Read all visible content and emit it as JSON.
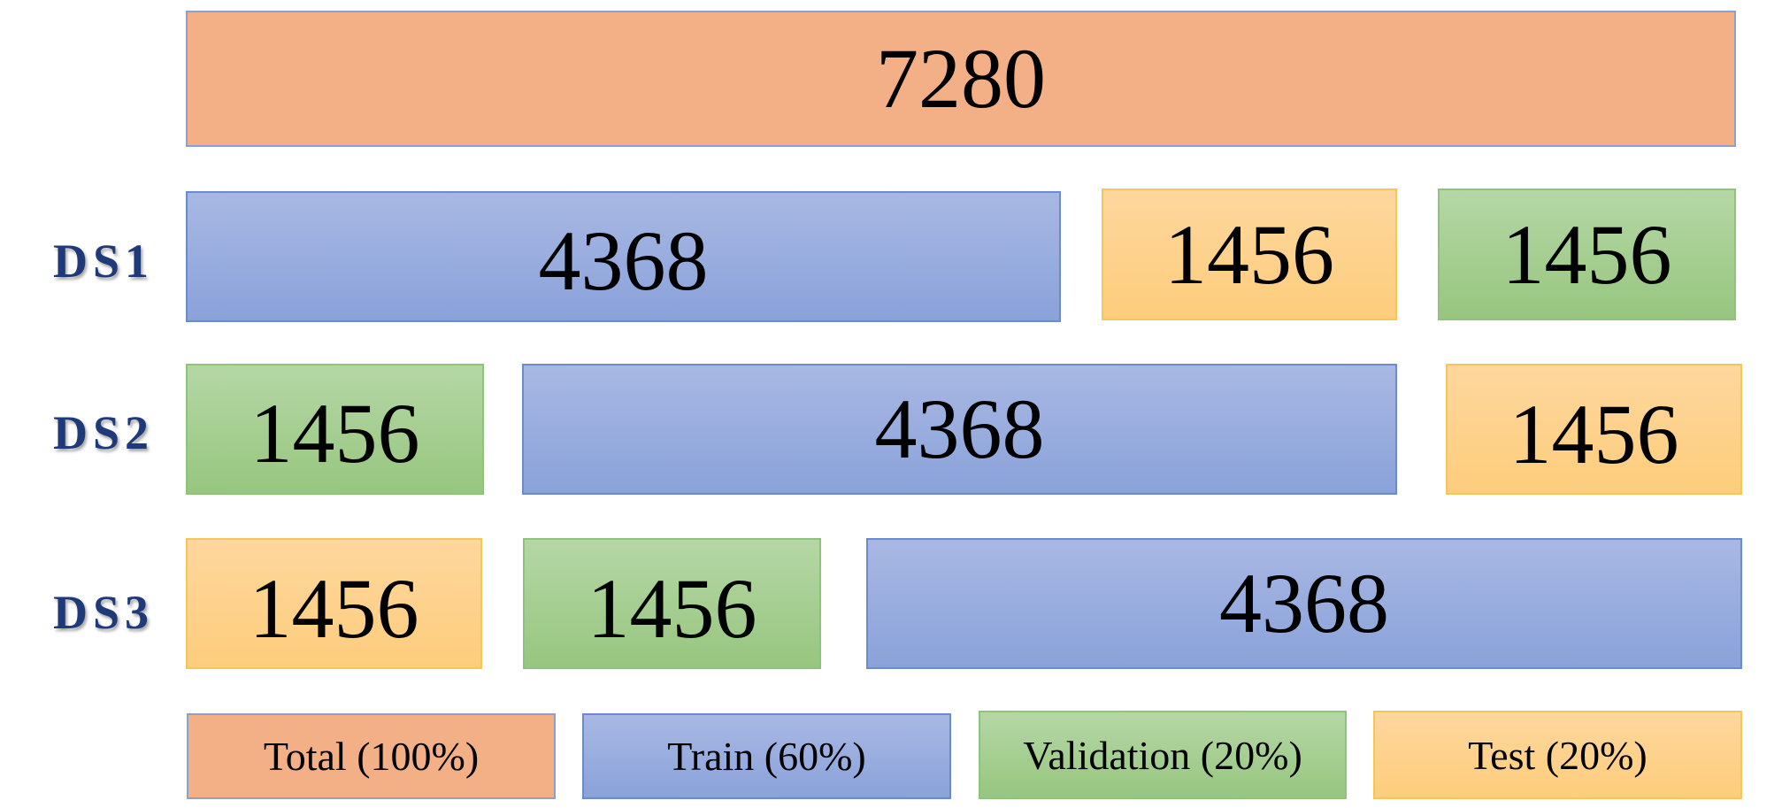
{
  "total": {
    "value": "7280"
  },
  "rows": [
    {
      "label": "DS1",
      "segments": [
        "4368",
        "1456",
        "1456"
      ]
    },
    {
      "label": "DS2",
      "segments": [
        "1456",
        "4368",
        "1456"
      ]
    },
    {
      "label": "DS3",
      "segments": [
        "1456",
        "1456",
        "4368"
      ]
    }
  ],
  "legend": {
    "total": "Total (100%)",
    "train": "Train (60%)",
    "validation": "Validation (20%)",
    "test": "Test (20%)"
  },
  "colors": {
    "total": "#f3af85",
    "train": "#8fa5dc",
    "validation": "#a3cd8e",
    "test": "#fdd38b",
    "row_label": "#1f3a78"
  }
}
